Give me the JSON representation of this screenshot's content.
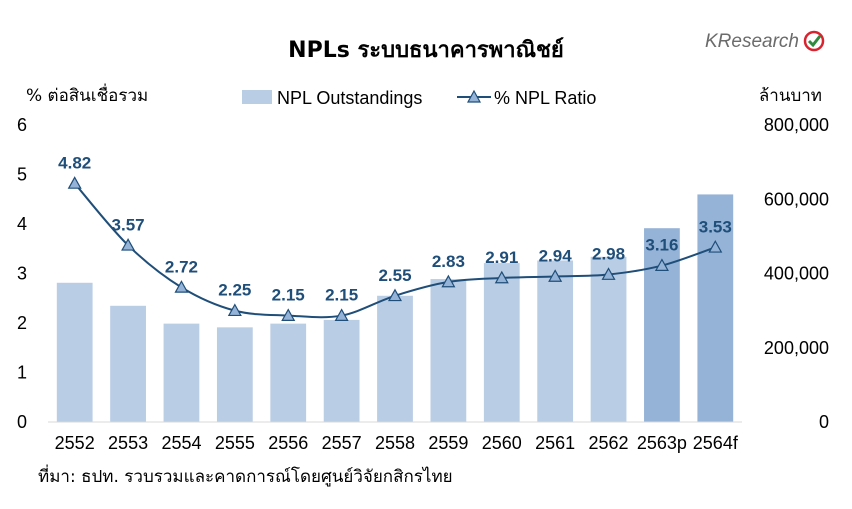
{
  "chart_data": {
    "type": "bar+line",
    "title": "NPLs ระบบธนาคารพาณิชย์",
    "ylabel_left": "% ต่อสินเชื่อรวม",
    "ylabel_right": "ล้านบาท",
    "categories": [
      "2552",
      "2553",
      "2554",
      "2555",
      "2556",
      "2557",
      "2558",
      "2559",
      "2560",
      "2561",
      "2562",
      "2563p",
      "2564f"
    ],
    "series": [
      {
        "name": "NPL Outstandings",
        "type": "bar",
        "axis": "right",
        "color": "#b9cde5",
        "highlight_color": "#95b3d7",
        "highlight_categories": [
          "2563p",
          "2564f"
        ],
        "values": [
          375000,
          313000,
          265000,
          255000,
          265000,
          275000,
          340000,
          385000,
          428000,
          435000,
          445000,
          522000,
          613000
        ]
      },
      {
        "name": "% NPL Ratio",
        "type": "line",
        "axis": "left",
        "color": "#1f4e79",
        "marker": "triangle",
        "values": [
          4.82,
          3.57,
          2.72,
          2.25,
          2.15,
          2.15,
          2.55,
          2.83,
          2.91,
          2.94,
          2.98,
          3.16,
          3.53
        ],
        "data_labels": [
          "4.82",
          "3.57",
          "2.72",
          "2.25",
          "2.15",
          "2.15",
          "2.55",
          "2.83",
          "2.91",
          "2.94",
          "2.98",
          "3.16",
          "3.53"
        ]
      }
    ],
    "y_left": {
      "min": 0,
      "max": 6,
      "ticks": [
        "0",
        "1",
        "2",
        "3",
        "4",
        "5",
        "6"
      ]
    },
    "y_right": {
      "min": 0,
      "max": 800000,
      "ticks": [
        "0",
        "200,000",
        "400,000",
        "600,000",
        "800,000"
      ]
    },
    "grid": false,
    "legend_position": "top"
  },
  "source_note": "ที่มา: ธปท. รวบรวมและคาดการณ์โดยศูนย์วิจัยกสิกรไทย",
  "logo": {
    "text": "KResearch"
  }
}
